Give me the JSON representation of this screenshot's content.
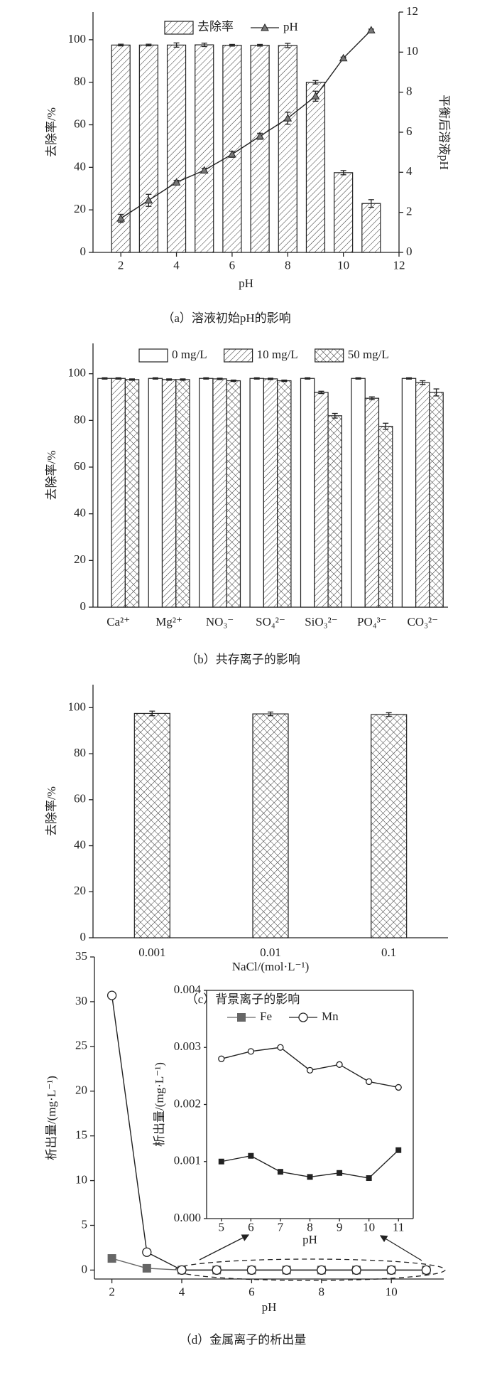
{
  "chart_data": [
    {
      "type": "bar",
      "caption": "（a）溶液初始pH的影响",
      "x_label": "pH",
      "y_label": "去除率/%",
      "y2_label": "平衡后溶液pH",
      "x": [
        2,
        3,
        4,
        5,
        6,
        7,
        8,
        9,
        10,
        11
      ],
      "xlim": [
        1,
        12
      ],
      "xticks": [
        2,
        4,
        6,
        8,
        10,
        12
      ],
      "ylim": [
        0,
        113
      ],
      "yticks": [
        0,
        20,
        40,
        60,
        80,
        100
      ],
      "y2lim": [
        0,
        12
      ],
      "y2ticks": [
        0,
        2,
        4,
        6,
        8,
        10,
        12
      ],
      "series": [
        {
          "name": "去除率",
          "type": "bar",
          "pattern": "backslash",
          "color": "#222222",
          "values": [
            97.5,
            97.5,
            97.5,
            97.6,
            97.4,
            97.4,
            97.3,
            80,
            37.5,
            23
          ],
          "errors": [
            0.4,
            0.4,
            1,
            0.8,
            0.4,
            0.4,
            1,
            0.8,
            1,
            1.8
          ]
        },
        {
          "name": "pH",
          "type": "line",
          "marker": "triangle",
          "axis": "y2",
          "color": "#222222",
          "values": [
            1.7,
            2.6,
            3.5,
            4.1,
            4.9,
            5.8,
            6.7,
            7.8,
            9.7,
            11.1
          ],
          "errors": [
            0.2,
            0.3,
            0.1,
            0.1,
            0.15,
            0.15,
            0.3,
            0.25,
            0.05,
            0.05
          ]
        }
      ]
    },
    {
      "type": "bar",
      "caption": "（b）共存离子的影响",
      "y_label": "去除率/%",
      "categories": [
        "Ca²⁺",
        "Mg²⁺",
        "NO₃⁻",
        "SO₄²⁻",
        "SiO₃²⁻",
        "PO₄³⁻",
        "CO₃²⁻"
      ],
      "ylim": [
        0,
        113
      ],
      "yticks": [
        0,
        20,
        40,
        60,
        80,
        100
      ],
      "series": [
        {
          "name": "0 mg/L",
          "pattern": "none",
          "color": "#222222",
          "values": [
            98,
            98,
            98,
            98,
            98,
            98,
            98
          ],
          "errors": [
            0.3,
            0.3,
            0.3,
            0.3,
            0.3,
            0.3,
            0.3
          ]
        },
        {
          "name": "10 mg/L",
          "pattern": "backslash",
          "color": "#222222",
          "values": [
            98,
            97.5,
            97.8,
            97.8,
            92,
            89.5,
            96.2
          ],
          "errors": [
            0.3,
            0.3,
            0.3,
            0.3,
            0.5,
            0.6,
            0.8
          ]
        },
        {
          "name": "50 mg/L",
          "pattern": "cross",
          "color": "#222222",
          "values": [
            97.5,
            97.5,
            97,
            97,
            82,
            77.5,
            92
          ],
          "errors": [
            0.3,
            0.3,
            0.3,
            0.3,
            1,
            1.3,
            1.5
          ]
        }
      ]
    },
    {
      "type": "bar",
      "caption": "（c）背景离子的影响",
      "x_label": "NaCl/(mol·L⁻¹)",
      "y_label": "去除率/%",
      "categories": [
        "0.001",
        "0.01",
        "0.1"
      ],
      "ylim": [
        0,
        110
      ],
      "yticks": [
        0,
        20,
        40,
        60,
        80,
        100
      ],
      "series": [
        {
          "pattern": "cross",
          "color": "#222222",
          "values": [
            97.5,
            97.3,
            97
          ],
          "errors": [
            1,
            0.8,
            0.8
          ]
        }
      ]
    },
    {
      "type": "line",
      "caption": "（d）金属离子的析出量",
      "x_label": "pH",
      "y_label": "析出量/(mg·L⁻¹)",
      "x": [
        2,
        3,
        4,
        5,
        6,
        7,
        8,
        9,
        10,
        11
      ],
      "xlim": [
        1.5,
        11.5
      ],
      "xticks": [
        2,
        4,
        6,
        8,
        10
      ],
      "ylim": [
        -1,
        35
      ],
      "yticks": [
        0,
        5,
        10,
        15,
        20,
        25,
        30,
        35
      ],
      "series": [
        {
          "name": "Fe",
          "marker": "square",
          "color": "#666666",
          "values": [
            1.3,
            0.2,
            0.001,
            0.001,
            0.0011,
            0.00082,
            0.00073,
            0.0008,
            0.00071,
            0.0012
          ]
        },
        {
          "name": "Mn",
          "marker": "circle",
          "color": "#222222",
          "values": [
            30.7,
            2.0,
            0.003,
            0.0028,
            0.00293,
            0.003,
            0.0026,
            0.0027,
            0.0024,
            0.0023
          ]
        }
      ]
    },
    {
      "type": "line",
      "x_label": "pH",
      "y_label": "析出量/(mg·L⁻¹)",
      "x": [
        5,
        6,
        7,
        8,
        9,
        10,
        11
      ],
      "xlim": [
        4.5,
        11.5
      ],
      "xticks": [
        5,
        6,
        7,
        8,
        9,
        10,
        11
      ],
      "ylim": [
        0,
        0.004
      ],
      "yticks": [
        {
          "value": 0,
          "label": "0.000"
        },
        {
          "value": 0.001,
          "label": "0.001"
        },
        {
          "value": 0.002,
          "label": "0.002"
        },
        {
          "value": 0.003,
          "label": "0.003"
        },
        {
          "value": 0.004,
          "label": "0.004"
        }
      ],
      "series": [
        {
          "marker": "square",
          "color": "#222222",
          "values": [
            0.001,
            0.0011,
            0.00082,
            0.00073,
            0.0008,
            0.00071,
            0.0012
          ]
        },
        {
          "marker": "circle",
          "color": "#222222",
          "values": [
            0.0028,
            0.00293,
            0.003,
            0.0026,
            0.0027,
            0.0024,
            0.0023
          ]
        }
      ]
    }
  ]
}
